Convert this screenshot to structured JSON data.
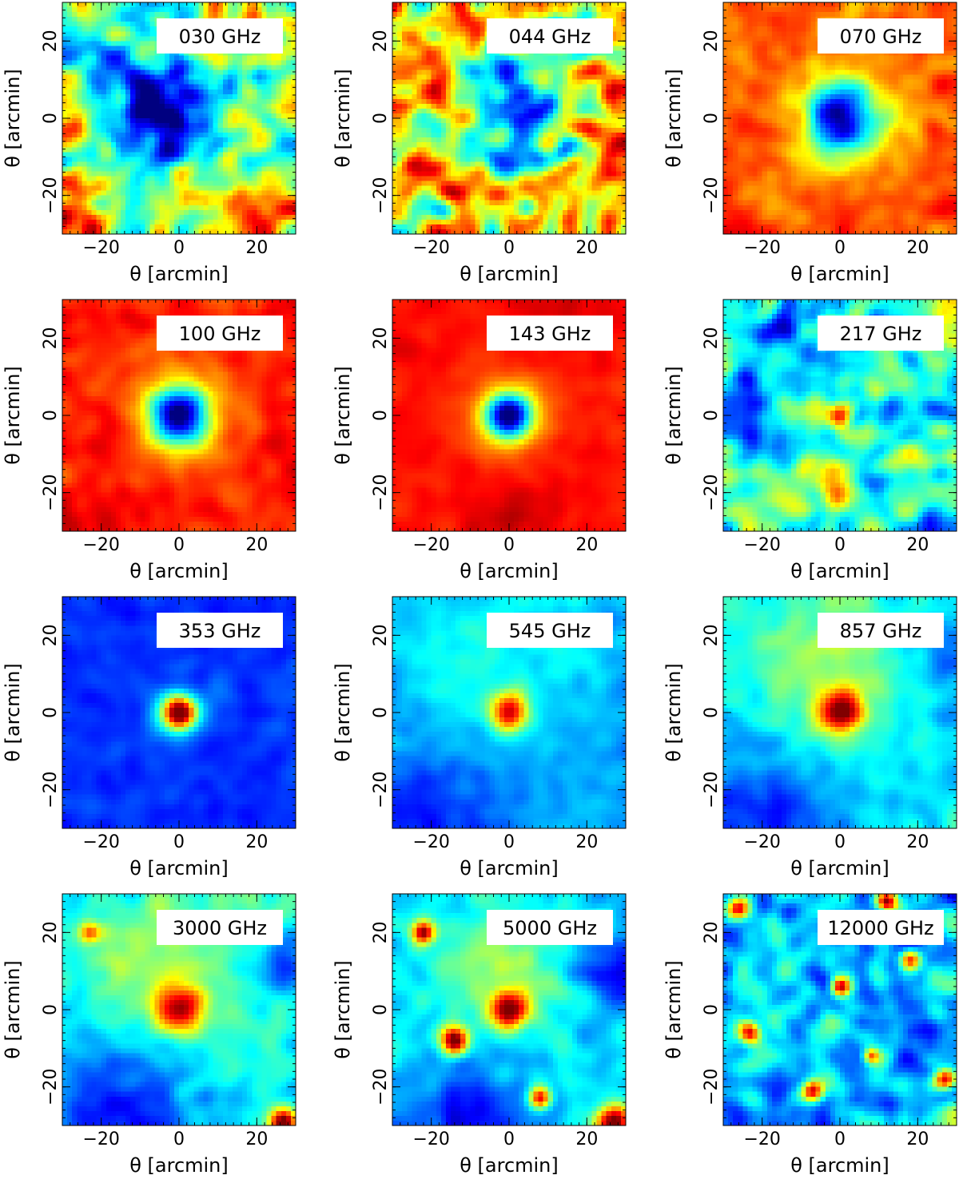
{
  "chart_data": [
    {
      "type": "heatmap",
      "label": "030 GHz",
      "xlabel": "θ [arcmin]",
      "ylabel": "θ [arcmin]",
      "xlim": [
        -30,
        30
      ],
      "ylim": [
        -30,
        30
      ],
      "xticks": [
        -20,
        0,
        20
      ],
      "yticks": [
        -20,
        0,
        20
      ],
      "colormap": "jet",
      "background": 0.5,
      "noise": 0.35,
      "sources": [
        {
          "x": -8,
          "y": 5,
          "width": 9,
          "amplitude": -0.35
        },
        {
          "x": -2,
          "y": -2,
          "width": 8,
          "amplitude": -0.25
        },
        {
          "x": -25,
          "y": -25,
          "width": 8,
          "amplitude": 0.25
        },
        {
          "x": 20,
          "y": -25,
          "width": 7,
          "amplitude": 0.2
        }
      ]
    },
    {
      "type": "heatmap",
      "label": "044 GHz",
      "xlabel": "θ [arcmin]",
      "ylabel": "θ [arcmin]",
      "xlim": [
        -30,
        30
      ],
      "ylim": [
        -30,
        30
      ],
      "xticks": [
        -20,
        0,
        20
      ],
      "yticks": [
        -20,
        0,
        20
      ],
      "colormap": "jet",
      "background": 0.65,
      "noise": 0.35,
      "sources": [
        {
          "x": 0,
          "y": 0,
          "width": 10,
          "amplitude": -0.4
        },
        {
          "x": 0,
          "y": 0,
          "width": 4,
          "amplitude": -0.15
        }
      ]
    },
    {
      "type": "heatmap",
      "label": "070 GHz",
      "xlabel": "θ [arcmin]",
      "ylabel": "θ [arcmin]",
      "xlim": [
        -30,
        30
      ],
      "ylim": [
        -30,
        30
      ],
      "xticks": [
        -20,
        0,
        20
      ],
      "yticks": [
        -20,
        0,
        20
      ],
      "colormap": "jet",
      "background": 0.8,
      "noise": 0.14,
      "sources": [
        {
          "x": 0,
          "y": 0,
          "width": 6,
          "amplitude": -0.68
        },
        {
          "x": 0,
          "y": 0,
          "width": 12,
          "amplitude": -0.15
        }
      ]
    },
    {
      "type": "heatmap",
      "label": "100 GHz",
      "xlabel": "θ [arcmin]",
      "ylabel": "θ [arcmin]",
      "xlim": [
        -30,
        30
      ],
      "ylim": [
        -30,
        30
      ],
      "xticks": [
        -20,
        0,
        20
      ],
      "yticks": [
        -20,
        0,
        20
      ],
      "colormap": "jet",
      "background": 0.85,
      "noise": 0.1,
      "sources": [
        {
          "x": 0,
          "y": 0,
          "width": 5,
          "amplitude": -0.75
        },
        {
          "x": 0,
          "y": 0,
          "width": 11,
          "amplitude": -0.15
        },
        {
          "x": -20,
          "y": -25,
          "width": 10,
          "amplitude": 0.05
        }
      ]
    },
    {
      "type": "heatmap",
      "label": "143 GHz",
      "xlabel": "θ [arcmin]",
      "ylabel": "θ [arcmin]",
      "xlim": [
        -30,
        30
      ],
      "ylim": [
        -30,
        30
      ],
      "xticks": [
        -20,
        0,
        20
      ],
      "yticks": [
        -20,
        0,
        20
      ],
      "colormap": "jet",
      "background": 0.86,
      "noise": 0.05,
      "sources": [
        {
          "x": 0,
          "y": 0,
          "width": 4,
          "amplitude": -0.76
        },
        {
          "x": 0,
          "y": 0,
          "width": 8,
          "amplitude": -0.18
        },
        {
          "x": 15,
          "y": 27,
          "width": 8,
          "amplitude": 0.06
        },
        {
          "x": 0,
          "y": -27,
          "width": 8,
          "amplitude": 0.06
        }
      ]
    },
    {
      "type": "heatmap",
      "label": "217 GHz",
      "xlabel": "θ [arcmin]",
      "ylabel": "θ [arcmin]",
      "xlim": [
        -30,
        30
      ],
      "ylim": [
        -30,
        30
      ],
      "xticks": [
        -20,
        0,
        20
      ],
      "yticks": [
        -20,
        0,
        20
      ],
      "colormap": "jet",
      "background": 0.42,
      "noise": 0.3,
      "sources": [
        {
          "x": -16,
          "y": 23,
          "width": 6,
          "amplitude": -0.3
        },
        {
          "x": -27,
          "y": 2,
          "width": 7,
          "amplitude": -0.25
        },
        {
          "x": 0,
          "y": 0,
          "width": 2.5,
          "amplitude": 0.45
        },
        {
          "x": 0,
          "y": -20,
          "width": 4,
          "amplitude": 0.25
        }
      ]
    },
    {
      "type": "heatmap",
      "label": "353 GHz",
      "xlabel": "θ [arcmin]",
      "ylabel": "θ [arcmin]",
      "xlim": [
        -30,
        30
      ],
      "ylim": [
        -30,
        30
      ],
      "xticks": [
        -20,
        0,
        20
      ],
      "yticks": [
        -20,
        0,
        20
      ],
      "colormap": "jet",
      "background": 0.17,
      "noise": 0.05,
      "sources": [
        {
          "x": 0,
          "y": 0,
          "width": 3,
          "amplitude": 0.83
        },
        {
          "x": 0,
          "y": 0,
          "width": 7,
          "amplitude": 0.1
        }
      ]
    },
    {
      "type": "heatmap",
      "label": "545 GHz",
      "xlabel": "θ [arcmin]",
      "ylabel": "θ [arcmin]",
      "xlim": [
        -30,
        30
      ],
      "ylim": [
        -30,
        30
      ],
      "xticks": [
        -20,
        0,
        20
      ],
      "yticks": [
        -20,
        0,
        20
      ],
      "colormap": "jet",
      "background": 0.3,
      "noise": 0.08,
      "sources": [
        {
          "x": 0,
          "y": 0,
          "width": 3.5,
          "amplitude": 0.6
        },
        {
          "x": -5,
          "y": 15,
          "width": 14,
          "amplitude": 0.1
        },
        {
          "x": -20,
          "y": -28,
          "width": 12,
          "amplitude": -0.15
        }
      ]
    },
    {
      "type": "heatmap",
      "label": "857 GHz",
      "xlabel": "θ [arcmin]",
      "ylabel": "θ [arcmin]",
      "xlim": [
        -30,
        30
      ],
      "ylim": [
        -30,
        30
      ],
      "xticks": [
        -20,
        0,
        20
      ],
      "yticks": [
        -20,
        0,
        20
      ],
      "colormap": "jet",
      "background": 0.35,
      "noise": 0.1,
      "sources": [
        {
          "x": 0,
          "y": 0,
          "width": 4,
          "amplitude": 0.55
        },
        {
          "x": -3,
          "y": 12,
          "width": 14,
          "amplitude": 0.2
        },
        {
          "x": -20,
          "y": -28,
          "width": 12,
          "amplitude": -0.2
        },
        {
          "x": 28,
          "y": 15,
          "width": 8,
          "amplitude": -0.12
        }
      ]
    },
    {
      "type": "heatmap",
      "label": "3000 GHz",
      "xlabel": "θ [arcmin]",
      "ylabel": "θ [arcmin]",
      "xlim": [
        -30,
        30
      ],
      "ylim": [
        -30,
        30
      ],
      "xticks": [
        -20,
        0,
        20
      ],
      "yticks": [
        -20,
        0,
        20
      ],
      "colormap": "jet",
      "background": 0.38,
      "noise": 0.1,
      "sources": [
        {
          "x": 0,
          "y": 0,
          "width": 4,
          "amplitude": 0.5
        },
        {
          "x": -3,
          "y": 10,
          "width": 13,
          "amplitude": 0.2
        },
        {
          "x": -23,
          "y": 20,
          "width": 2,
          "amplitude": 0.4
        },
        {
          "x": -15,
          "y": -28,
          "width": 14,
          "amplitude": -0.25
        },
        {
          "x": 27,
          "y": 12,
          "width": 5,
          "amplitude": -0.2
        },
        {
          "x": 8,
          "y": -23,
          "width": 2,
          "amplitude": -0.1
        },
        {
          "x": 27,
          "y": -29,
          "width": 2.5,
          "amplitude": 0.7
        }
      ]
    },
    {
      "type": "heatmap",
      "label": "5000 GHz",
      "xlabel": "θ [arcmin]",
      "ylabel": "θ [arcmin]",
      "xlim": [
        -30,
        30
      ],
      "ylim": [
        -30,
        30
      ],
      "xticks": [
        -20,
        0,
        20
      ],
      "yticks": [
        -20,
        0,
        20
      ],
      "colormap": "jet",
      "background": 0.33,
      "noise": 0.1,
      "sources": [
        {
          "x": 0,
          "y": 0,
          "width": 3.5,
          "amplitude": 0.55
        },
        {
          "x": -3,
          "y": 12,
          "width": 12,
          "amplitude": 0.2
        },
        {
          "x": -22,
          "y": 20,
          "width": 2,
          "amplitude": 0.6
        },
        {
          "x": -14,
          "y": -8,
          "width": 2.5,
          "amplitude": 0.7
        },
        {
          "x": 8,
          "y": -23,
          "width": 2,
          "amplitude": 0.6
        },
        {
          "x": 27,
          "y": -29,
          "width": 3,
          "amplitude": 0.7
        },
        {
          "x": -10,
          "y": -28,
          "width": 10,
          "amplitude": -0.2
        },
        {
          "x": 27,
          "y": 10,
          "width": 6,
          "amplitude": -0.2
        }
      ]
    },
    {
      "type": "heatmap",
      "label": "12000 GHz",
      "xlabel": "θ [arcmin]",
      "ylabel": "θ [arcmin]",
      "xlim": [
        -30,
        30
      ],
      "ylim": [
        -30,
        30
      ],
      "xticks": [
        -20,
        0,
        20
      ],
      "yticks": [
        -20,
        0,
        20
      ],
      "colormap": "jet",
      "background": 0.3,
      "noise": 0.28,
      "sources": [
        {
          "x": -26,
          "y": 26,
          "width": 2,
          "amplitude": 0.65
        },
        {
          "x": 18,
          "y": 13,
          "width": 2,
          "amplitude": 0.65
        },
        {
          "x": 0,
          "y": 6,
          "width": 1.8,
          "amplitude": 0.65
        },
        {
          "x": -23,
          "y": -6,
          "width": 2,
          "amplitude": 0.65
        },
        {
          "x": -7,
          "y": -21,
          "width": 2,
          "amplitude": 0.65
        },
        {
          "x": 27,
          "y": -18,
          "width": 2,
          "amplitude": 0.65
        },
        {
          "x": 12,
          "y": 28,
          "width": 1.8,
          "amplitude": 0.6
        },
        {
          "x": 8,
          "y": -12,
          "width": 1.5,
          "amplitude": 0.5
        }
      ]
    }
  ]
}
